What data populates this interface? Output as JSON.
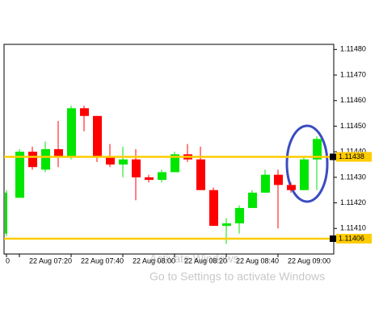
{
  "chart_data": {
    "type": "candlestick",
    "categories": [
      "0",
      "22 Aug 07:20",
      null,
      null,
      null,
      "22 Aug 07:40",
      null,
      null,
      null,
      "22 Aug 08:00",
      null,
      null,
      null,
      "22 Aug 08:20",
      null,
      null,
      null,
      "22 Aug 08:40",
      null,
      null,
      null,
      "22 Aug 09:00",
      null,
      null,
      null
    ],
    "open": [
      1.11408,
      1.11422,
      1.1144,
      1.11433,
      1.11441,
      1.11438,
      1.11457,
      1.11454,
      1.11438,
      1.11435,
      1.11437,
      1.1143,
      1.11429,
      1.11432,
      1.11439,
      1.11437,
      1.11425,
      1.11411,
      1.11412,
      1.11418,
      1.11424,
      1.11431,
      1.11427,
      1.11425,
      1.11437
    ],
    "high": [
      1.11425,
      1.11441,
      1.11442,
      1.11444,
      1.11452,
      1.11458,
      1.11458,
      1.11454,
      1.11443,
      1.11442,
      1.11441,
      1.11431,
      1.11433,
      1.1144,
      1.11443,
      1.11442,
      1.11426,
      1.11414,
      1.11419,
      1.11425,
      1.11433,
      1.11433,
      1.11428,
      1.11438,
      1.11446
    ],
    "low": [
      1.11407,
      1.11422,
      1.11433,
      1.11432,
      1.11434,
      1.11437,
      1.11448,
      1.11436,
      1.11434,
      1.1143,
      1.11421,
      1.11428,
      1.11428,
      1.11432,
      1.11436,
      1.11425,
      1.11411,
      1.11404,
      1.11408,
      1.11418,
      1.11424,
      1.1141,
      1.11424,
      1.11425,
      1.11425
    ],
    "close": [
      1.11424,
      1.1144,
      1.11434,
      1.11441,
      1.11438,
      1.11457,
      1.11454,
      1.11438,
      1.11435,
      1.11437,
      1.1143,
      1.11429,
      1.11432,
      1.11439,
      1.11437,
      1.11425,
      1.11411,
      1.11412,
      1.11418,
      1.11424,
      1.11431,
      1.11427,
      1.11425,
      1.11437,
      1.11445
    ],
    "up_color": "#00e600",
    "down_color": "#ff0000",
    "ylim": [
      1.114,
      1.11482
    ],
    "yticks": [
      {
        "value": 1.1141,
        "label": "1.11410"
      },
      {
        "value": 1.1142,
        "label": "1.11420"
      },
      {
        "value": 1.1143,
        "label": "1.11430"
      },
      {
        "value": 1.1144,
        "label": "1.11440"
      },
      {
        "value": 1.1145,
        "label": "1.11450"
      },
      {
        "value": 1.1146,
        "label": "1.11460"
      },
      {
        "value": 1.1147,
        "label": "1.11470"
      },
      {
        "value": 1.1148,
        "label": "1.11480"
      }
    ],
    "price_lines": [
      {
        "value": 1.11438,
        "color": "#ffcc00"
      },
      {
        "value": 1.11406,
        "color": "#ffcc00"
      }
    ],
    "watermark": [
      "Activate Windows",
      "Go to Settings to activate Windows"
    ]
  }
}
